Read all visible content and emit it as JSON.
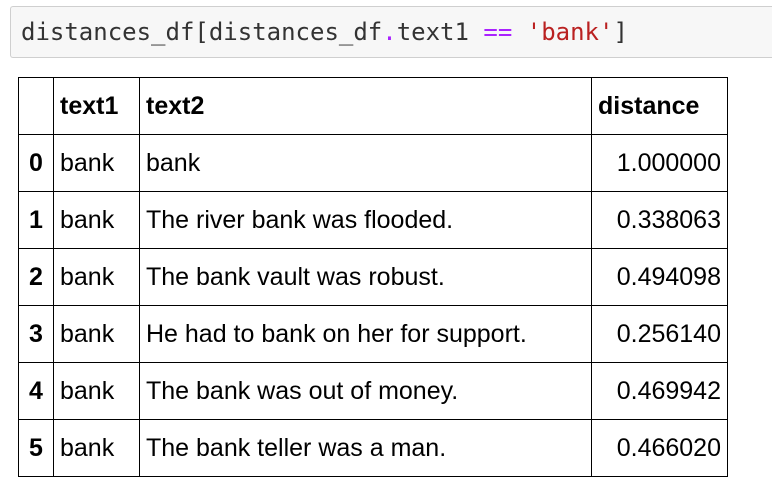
{
  "code_cell": {
    "tokens": {
      "t1": "distances_df",
      "t2": "[",
      "t3": "distances_df",
      "t4": ".",
      "t5": "text1",
      "t6": " ",
      "t7": "==",
      "t8": " ",
      "t9": "'bank'",
      "t10": "]"
    }
  },
  "table": {
    "headers": {
      "index": "",
      "text1": "text1",
      "text2": "text2",
      "distance": "distance"
    },
    "rows": [
      {
        "index": "0",
        "text1": "bank",
        "text2": "bank",
        "distance": "1.000000"
      },
      {
        "index": "1",
        "text1": "bank",
        "text2": "The river bank was flooded.",
        "distance": "0.338063"
      },
      {
        "index": "2",
        "text1": "bank",
        "text2": "The bank vault was robust.",
        "distance": "0.494098"
      },
      {
        "index": "3",
        "text1": "bank",
        "text2": "He had to bank on her for support.",
        "distance": "0.256140"
      },
      {
        "index": "4",
        "text1": "bank",
        "text2": "The bank was out of money.",
        "distance": "0.469942"
      },
      {
        "index": "5",
        "text1": "bank",
        "text2": "The bank teller was a man.",
        "distance": "0.466020"
      }
    ]
  },
  "colors": {
    "code_background": "#f7f7f7",
    "code_border": "#cfcfcf",
    "operator": "#aa22ff",
    "string": "#ba2121",
    "table_border": "#000000"
  }
}
